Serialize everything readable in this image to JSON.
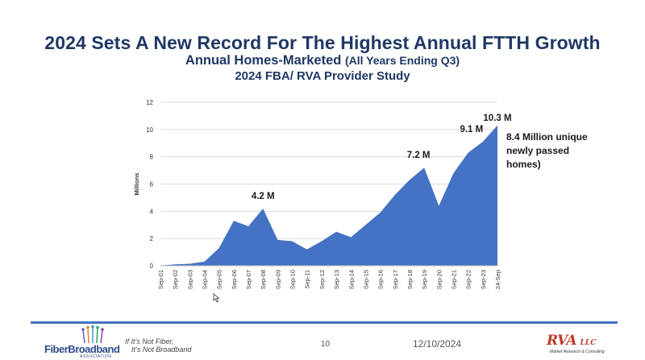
{
  "slide": {
    "title": "2024 Sets A New Record For The Highest Annual FTTH Growth",
    "subtitle_main": "Annual Homes-Marketed",
    "subtitle_paren": "(All Years Ending Q3)",
    "subtitle2": "2024 FBA/ RVA Provider Study",
    "callout": [
      "8.4 Million unique",
      "newly passed",
      "homes)"
    ]
  },
  "footer": {
    "logo_text": "FiberBroadband",
    "logo_sub": "ASSOCIATION",
    "tagline_1": "If It’s Not Fiber,",
    "tagline_2": "It’s Not Broadband",
    "page_number": "10",
    "date": "12/10/2024",
    "rva_logo": "RVA",
    "rva_llc": "LLC",
    "rva_sub": "Market Research & Consulting"
  },
  "chart_data": {
    "type": "area",
    "title": "",
    "xlabel": "",
    "ylabel": "Millions",
    "ylim": [
      0,
      12
    ],
    "yticks": [
      0,
      2,
      4,
      6,
      8,
      10,
      12
    ],
    "grid": true,
    "color": "#4472c4",
    "categories": [
      "Sep-01",
      "Sep-02",
      "Sep-03",
      "Sep-04",
      "Sep-05",
      "Sep-06",
      "Sep-07",
      "Sep-08",
      "Sep-09",
      "Sep-10",
      "Sep-11",
      "Sep-12",
      "Sep-13",
      "Sep-14",
      "Sep-15",
      "Sep-16",
      "Sep-17",
      "Sep-18",
      "Sep-19",
      "Sep-20",
      "Sep-21",
      "Sep-22",
      "Sep-23",
      "24-Sep"
    ],
    "values": [
      0.02,
      0.1,
      0.15,
      0.3,
      1.3,
      3.3,
      2.9,
      4.2,
      1.9,
      1.8,
      1.2,
      1.8,
      2.5,
      2.1,
      3.0,
      3.9,
      5.2,
      6.3,
      7.2,
      4.4,
      6.8,
      8.3,
      9.1,
      10.3
    ],
    "annotations": [
      {
        "category": "Sep-08",
        "text": "4.2 M"
      },
      {
        "category": "Sep-19",
        "text": "7.2 M"
      },
      {
        "category": "Sep-23",
        "text": "9.1 M"
      },
      {
        "category": "24-Sep",
        "text": "10.3 M"
      }
    ]
  }
}
